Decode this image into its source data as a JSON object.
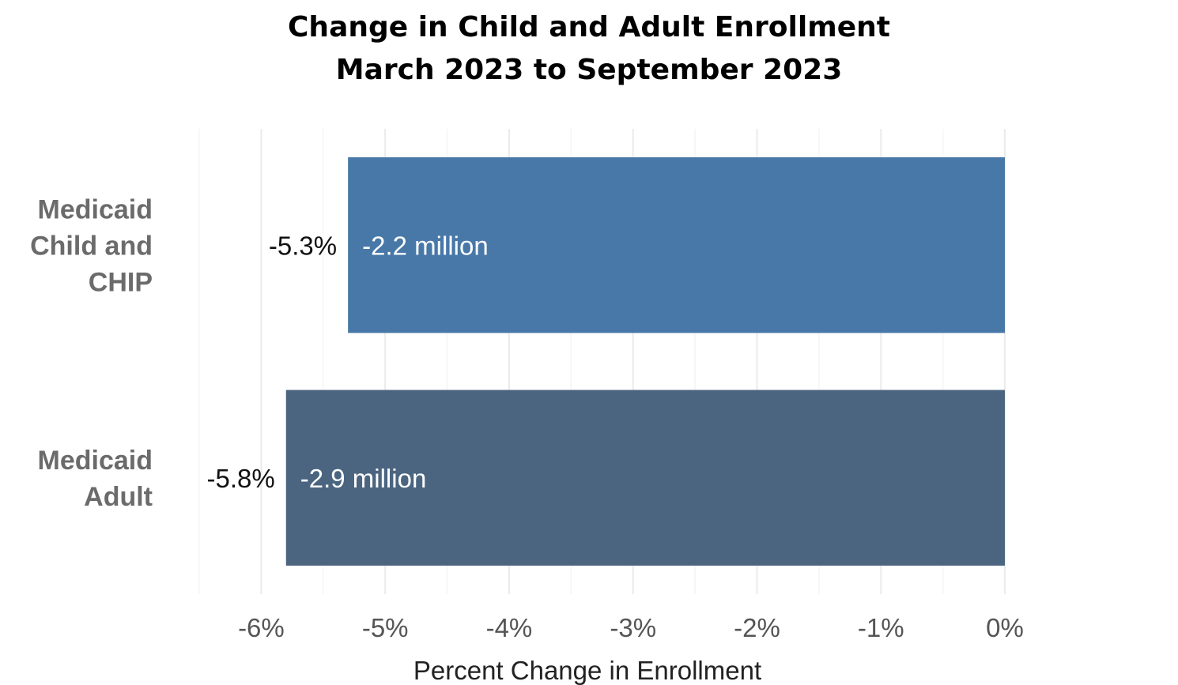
{
  "chart_data": {
    "type": "bar",
    "orientation": "horizontal",
    "title": "Change in Child and Adult Enrollment",
    "subtitle": "March 2023 to September 2023",
    "xlabel": "Percent Change in Enrollment",
    "ylabel": "",
    "xlim": [
      -6.8,
      0
    ],
    "x_ticks": [
      -6,
      -5,
      -4,
      -3,
      -2,
      -1,
      0
    ],
    "x_tick_labels": [
      "-6%",
      "-5%",
      "-4%",
      "-3%",
      "-2%",
      "-1%",
      "0%"
    ],
    "grid": "vertical",
    "legend": "none",
    "categories": [
      {
        "lines": [
          "Medicaid",
          "Child and",
          "CHIP"
        ],
        "value": -5.3,
        "value_label": "-5.3%",
        "count_label": "-2.2 million",
        "color": "#4878a8"
      },
      {
        "lines": [
          "Medicaid",
          "Adult"
        ],
        "value": -5.8,
        "value_label": "-5.8%",
        "count_label": "-2.9 million",
        "color": "#4b6580"
      }
    ]
  }
}
